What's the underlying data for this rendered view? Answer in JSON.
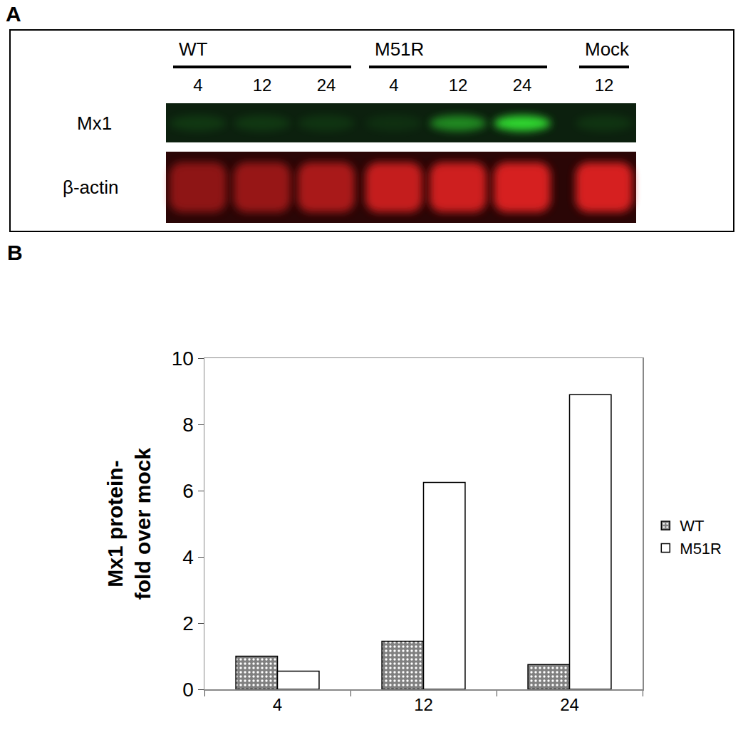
{
  "blot": {
    "panel_label": "A",
    "groups": [
      {
        "name": "WT",
        "lanes": [
          "4",
          "12",
          "24"
        ]
      },
      {
        "name": "M51R",
        "lanes": [
          "4",
          "12",
          "24"
        ]
      },
      {
        "name": "Mock",
        "lanes": [
          "12"
        ]
      }
    ],
    "rows": [
      "Mx1",
      "β-actin"
    ]
  },
  "chart_data": {
    "panel_label": "B",
    "type": "bar",
    "categories": [
      "4",
      "12",
      "24"
    ],
    "series": [
      {
        "name": "WT",
        "color": "#808080",
        "values": [
          1.0,
          1.45,
          0.75
        ]
      },
      {
        "name": "M51R",
        "color": "#ffffff",
        "values": [
          0.55,
          6.25,
          8.9
        ]
      }
    ],
    "ylabel": "Mx1 protein-\nfold over mock",
    "ylim": [
      0,
      10
    ],
    "yticks": [
      0,
      2,
      4,
      6,
      8,
      10
    ],
    "grid": false,
    "legend": "right"
  }
}
